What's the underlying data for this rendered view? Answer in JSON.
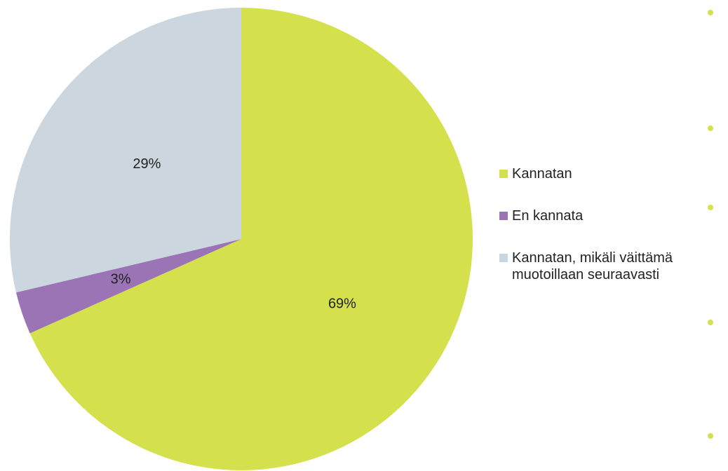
{
  "chart_data": {
    "type": "pie",
    "categories": [
      "Kannatan",
      "En kannata",
      "Kannatan, mikäli väittämä muotoillaan seuraavasti"
    ],
    "values": [
      69,
      3,
      29
    ],
    "value_labels": [
      "69%",
      "3%",
      "29%"
    ],
    "colors": [
      "#d4e04c",
      "#9a74b5",
      "#ccd6de"
    ],
    "legend": "right"
  }
}
